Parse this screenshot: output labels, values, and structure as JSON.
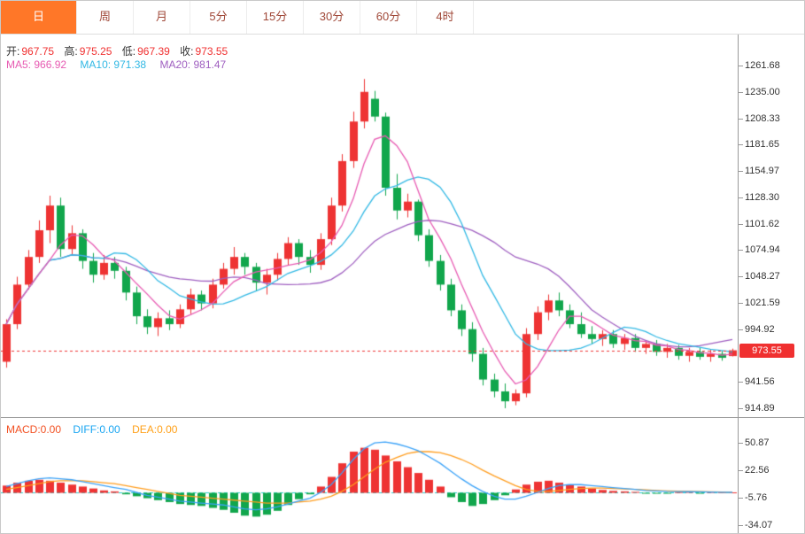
{
  "tabs": [
    {
      "label": "日",
      "active": true
    },
    {
      "label": "周",
      "active": false
    },
    {
      "label": "月",
      "active": false
    },
    {
      "label": "5分",
      "active": false
    },
    {
      "label": "15分",
      "active": false
    },
    {
      "label": "30分",
      "active": false
    },
    {
      "label": "60分",
      "active": false
    },
    {
      "label": "4时",
      "active": false
    }
  ],
  "main_chart": {
    "ohlc": {
      "open_label": "开:",
      "open": "967.75",
      "high_label": "高:",
      "high": "975.25",
      "low_label": "低:",
      "low": "967.39",
      "close_label": "收:",
      "close": "973.55"
    },
    "ma": {
      "ma5": "MA5: 966.92",
      "ma10": "MA10: 971.38",
      "ma20": "MA20: 981.47"
    },
    "price_tag": "973.55"
  },
  "macd_panel": {
    "macd": "MACD:0.00",
    "diff": "DIFF:0.00",
    "dea": "DEA:0.00"
  },
  "colors": {
    "up": "#ee3333",
    "down": "#11a64c",
    "ma5": "#e75ab2",
    "ma10": "#31b8e4",
    "ma20": "#9f5fc0",
    "diff_line": "#3aa2f8",
    "dea_line": "#ff9d1e",
    "zero_line": "#27cfcf",
    "active_tab": "#ff7728",
    "price_tag_bg": "#f03030",
    "axis_text": "#333333"
  },
  "chart_data": [
    {
      "type": "candlestick",
      "title": "Daily K-line with MA5/MA10/MA20",
      "ylim": [
        906,
        1293
      ],
      "ytick_labels": [
        "1261.68",
        "1235.00",
        "1208.33",
        "1181.65",
        "1154.97",
        "1128.30",
        "1101.62",
        "1074.94",
        "1048.27",
        "1021.59",
        "994.92",
        "941.56",
        "914.89"
      ],
      "last_price": 973.55,
      "ma_periods": [
        5,
        10,
        20
      ],
      "ohlc_display": {
        "open": 967.75,
        "high": 975.25,
        "low": 967.39,
        "close": 973.55
      },
      "ma_display": {
        "MA5": 966.92,
        "MA10": 971.38,
        "MA20": 981.47
      },
      "candles": [
        [
          962,
          1005,
          956,
          1000
        ],
        [
          1000,
          1048,
          995,
          1040
        ],
        [
          1040,
          1075,
          1035,
          1068
        ],
        [
          1068,
          1105,
          1062,
          1095
        ],
        [
          1095,
          1130,
          1082,
          1120
        ],
        [
          1120,
          1128,
          1068,
          1076
        ],
        [
          1076,
          1100,
          1070,
          1092
        ],
        [
          1092,
          1096,
          1056,
          1064
        ],
        [
          1064,
          1072,
          1042,
          1050
        ],
        [
          1050,
          1070,
          1045,
          1062
        ],
        [
          1062,
          1068,
          1046,
          1054
        ],
        [
          1054,
          1058,
          1024,
          1032
        ],
        [
          1032,
          1038,
          1000,
          1008
        ],
        [
          1008,
          1015,
          990,
          997
        ],
        [
          997,
          1012,
          988,
          1006
        ],
        [
          1006,
          1014,
          994,
          1000
        ],
        [
          1000,
          1020,
          996,
          1015
        ],
        [
          1015,
          1036,
          1010,
          1030
        ],
        [
          1030,
          1034,
          1014,
          1021
        ],
        [
          1021,
          1046,
          1016,
          1040
        ],
        [
          1040,
          1062,
          1036,
          1056
        ],
        [
          1056,
          1078,
          1050,
          1068
        ],
        [
          1068,
          1072,
          1050,
          1058
        ],
        [
          1058,
          1062,
          1034,
          1042
        ],
        [
          1042,
          1056,
          1030,
          1050
        ],
        [
          1050,
          1072,
          1044,
          1066
        ],
        [
          1066,
          1088,
          1060,
          1082
        ],
        [
          1082,
          1086,
          1060,
          1068
        ],
        [
          1068,
          1075,
          1052,
          1060
        ],
        [
          1060,
          1092,
          1055,
          1086
        ],
        [
          1086,
          1128,
          1080,
          1120
        ],
        [
          1120,
          1172,
          1114,
          1165
        ],
        [
          1165,
          1215,
          1158,
          1205
        ],
        [
          1205,
          1248,
          1198,
          1235
        ],
        [
          1228,
          1236,
          1205,
          1210
        ],
        [
          1210,
          1214,
          1130,
          1138
        ],
        [
          1138,
          1152,
          1106,
          1115
        ],
        [
          1115,
          1132,
          1108,
          1124
        ],
        [
          1124,
          1126,
          1084,
          1090
        ],
        [
          1090,
          1096,
          1058,
          1064
        ],
        [
          1064,
          1070,
          1034,
          1040
        ],
        [
          1040,
          1046,
          1008,
          1014
        ],
        [
          1014,
          1020,
          988,
          995
        ],
        [
          995,
          1002,
          962,
          970
        ],
        [
          970,
          976,
          938,
          944
        ],
        [
          944,
          950,
          926,
          932
        ],
        [
          932,
          940,
          915,
          922
        ],
        [
          922,
          934,
          918,
          930
        ],
        [
          930,
          996,
          926,
          990
        ],
        [
          990,
          1018,
          984,
          1012
        ],
        [
          1012,
          1030,
          1004,
          1024
        ],
        [
          1024,
          1032,
          1008,
          1014
        ],
        [
          1014,
          1020,
          996,
          1000
        ],
        [
          1000,
          1012,
          986,
          990
        ],
        [
          990,
          998,
          980,
          985
        ],
        [
          985,
          994,
          978,
          990
        ],
        [
          990,
          994,
          976,
          980
        ],
        [
          980,
          990,
          974,
          986
        ],
        [
          986,
          990,
          972,
          976
        ],
        [
          976,
          984,
          970,
          980
        ],
        [
          980,
          984,
          968,
          972
        ],
        [
          972,
          980,
          966,
          976
        ],
        [
          976,
          979,
          964,
          968
        ],
        [
          968,
          976,
          962,
          972
        ],
        [
          972,
          976,
          964,
          967
        ],
        [
          967,
          974,
          962,
          970
        ],
        [
          970,
          973,
          963,
          966
        ],
        [
          967.75,
          975.25,
          967.39,
          973.55
        ]
      ]
    },
    {
      "type": "bar",
      "name": "MACD",
      "ylim": [
        -41.1,
        68.5
      ],
      "ytick_labels": [
        "50.87",
        "22.56",
        "-5.76",
        "-34.07"
      ],
      "series": [
        {
          "name": "HIST",
          "values": [
            7,
            10,
            12,
            13,
            12,
            10,
            8,
            6,
            4,
            2,
            1,
            -2,
            -4,
            -6,
            -8,
            -10,
            -12,
            -13,
            -14,
            -16,
            -18,
            -21,
            -24,
            -25,
            -23,
            -19,
            -13,
            -7,
            -2,
            6,
            16,
            30,
            42,
            46,
            44,
            38,
            32,
            26,
            20,
            13,
            6,
            -5,
            -10,
            -14,
            -12,
            -8,
            -3,
            3,
            8,
            11,
            12,
            10,
            8,
            6,
            4,
            2.5,
            1.5,
            1,
            0.5,
            -0.5,
            -0.8,
            -0.5,
            0.3,
            0.5,
            -0.3,
            0.4,
            0.2,
            0
          ]
        },
        {
          "name": "DIFF",
          "values": [
            6,
            9,
            12,
            14,
            15,
            14,
            13,
            11,
            9,
            7,
            5,
            3,
            0,
            -3,
            -5,
            -7,
            -9,
            -10,
            -11,
            -12,
            -13,
            -15,
            -17,
            -18,
            -17,
            -15,
            -12,
            -9,
            -6,
            0,
            8,
            20,
            34,
            45,
            51,
            52,
            50,
            47,
            43,
            37,
            30,
            22,
            14,
            7,
            1,
            -4,
            -7,
            -7,
            -4,
            0,
            4,
            7,
            8,
            8,
            7,
            6,
            5,
            4,
            3,
            2,
            1.5,
            1,
            0.8,
            0.7,
            0.5,
            0.4,
            0.2,
            0
          ]
        },
        {
          "name": "DEA",
          "values": [
            3,
            5,
            7,
            9,
            11,
            12,
            12,
            12,
            11,
            10,
            9,
            7,
            5,
            3,
            1,
            -1,
            -3,
            -4,
            -5,
            -6,
            -7,
            -8,
            -9,
            -10,
            -11,
            -11,
            -11,
            -10,
            -9,
            -7,
            -4,
            1,
            8,
            16,
            24,
            31,
            36,
            40,
            42,
            42,
            41,
            38,
            34,
            29,
            23,
            17,
            12,
            7,
            3,
            1,
            1,
            2,
            3,
            4,
            4.5,
            4.5,
            4,
            3.5,
            3,
            2.5,
            2,
            1.5,
            1.2,
            1,
            0.8,
            0.6,
            0.3,
            0
          ]
        }
      ]
    }
  ]
}
